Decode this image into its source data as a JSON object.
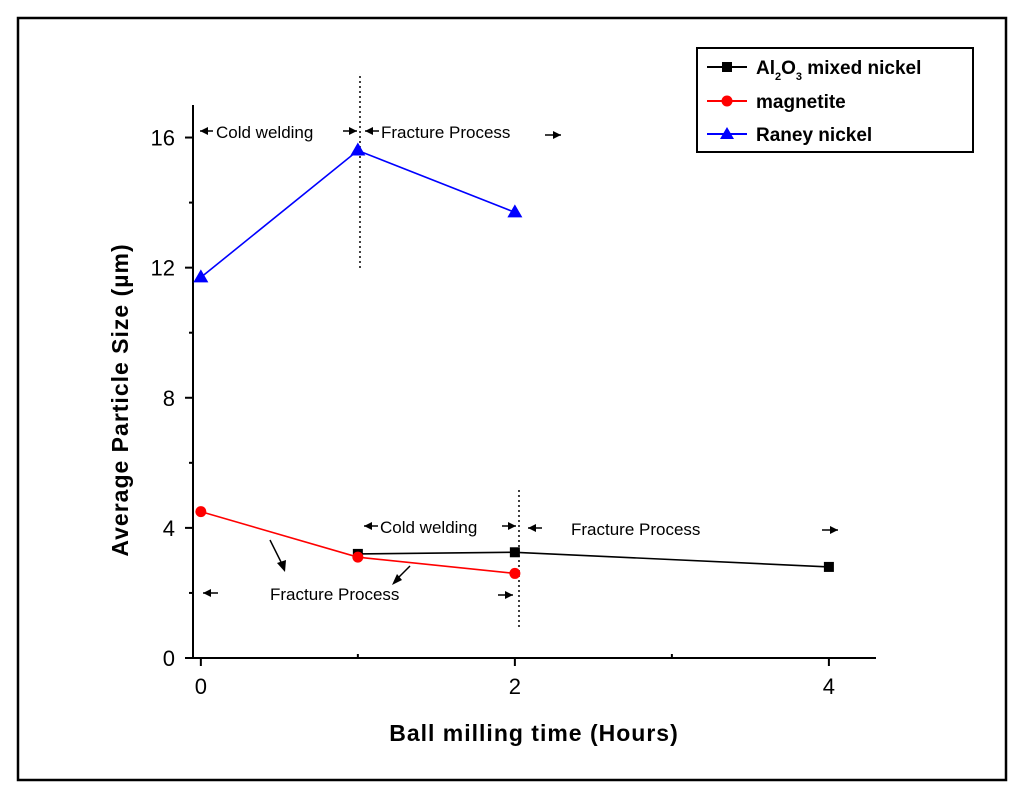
{
  "chart_data": {
    "type": "line",
    "title": "",
    "xlabel": "Ball milling time (Hours)",
    "ylabel": "Average Particle Size (µm)",
    "xlim": [
      -0.05,
      4.3
    ],
    "ylim": [
      0,
      17
    ],
    "xticks": [
      0,
      2,
      4
    ],
    "xticks_minor": [
      1,
      3
    ],
    "yticks": [
      0,
      4,
      8,
      12,
      16
    ],
    "yticks_minor": [
      2,
      6,
      10,
      14
    ],
    "legend_position": "top-right",
    "series": [
      {
        "name": "Al2O3 mixed nickel",
        "label_main": "Al",
        "label_sub1": "2",
        "label_mid": "O",
        "label_sub2": "3",
        "label_rest": " mixed nickel",
        "color": "#000000",
        "marker": "square",
        "x": [
          1,
          2,
          4
        ],
        "y": [
          3.2,
          3.25,
          2.8
        ]
      },
      {
        "name": "magnetite",
        "color": "#ff0000",
        "marker": "circle",
        "x": [
          0,
          1,
          2
        ],
        "y": [
          4.5,
          3.1,
          2.6
        ]
      },
      {
        "name": "Raney nickel",
        "color": "#0000ff",
        "marker": "triangle",
        "x": [
          0,
          1,
          2
        ],
        "y": [
          11.7,
          15.6,
          13.7
        ]
      }
    ],
    "annotations": {
      "cold_welding_top": "Cold welding",
      "fracture_top": "Fracture Process",
      "cold_welding_bottom": "Cold welding",
      "fracture_bottom_right": "Fracture Process",
      "fracture_bottom_left": "Fracture Process"
    }
  }
}
